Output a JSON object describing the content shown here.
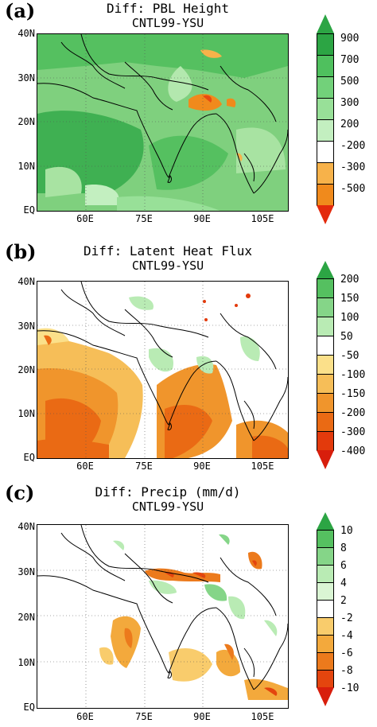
{
  "panels": [
    {
      "letter": "(a)",
      "title_line1": "Diff: PBL Height",
      "title_line2": "CNTL99-YSU",
      "ylabels": [
        "40N",
        "30N",
        "20N",
        "10N",
        "EQ"
      ],
      "xlabels": [
        "60E",
        "75E",
        "90E",
        "105E"
      ],
      "colorbar": {
        "labels": [
          "900",
          "700",
          "500",
          "300",
          "200",
          "-200",
          "-300",
          "-500"
        ],
        "colors": [
          "#2ca544",
          "#4fc05e",
          "#72d17a",
          "#98e098",
          "#c3efc0",
          "#ffffff",
          "#f7b24a",
          "#f08a1c",
          "#e84a10"
        ],
        "top_color": "#2ca544",
        "bottom_color": "#e32a0c"
      }
    },
    {
      "letter": "(b)",
      "title_line1": "Diff: Latent Heat Flux",
      "title_line2": "CNTL99-YSU",
      "ylabels": [
        "40N",
        "30N",
        "20N",
        "10N",
        "EQ"
      ],
      "xlabels": [
        "60E",
        "75E",
        "90E",
        "105E"
      ],
      "colorbar": {
        "labels": [
          "200",
          "150",
          "100",
          "50",
          "-50",
          "-100",
          "-150",
          "-200",
          "-300",
          "-400"
        ],
        "colors": [
          "#2ca544",
          "#55c060",
          "#85d588",
          "#b9ebb4",
          "#ffffff",
          "#fbe08a",
          "#f6be58",
          "#f0952c",
          "#ea6a14",
          "#e33a0c",
          "#d81e0c"
        ],
        "top_color": "#2ca544",
        "bottom_color": "#d81e0c"
      }
    },
    {
      "letter": "(c)",
      "title_line1": "Diff: Precip (mm/d)",
      "title_line2": "CNTL99-YSU",
      "ylabels": [
        "40N",
        "30N",
        "20N",
        "10N",
        "EQ"
      ],
      "xlabels": [
        "60E",
        "75E",
        "90E",
        "105E"
      ],
      "colorbar": {
        "labels": [
          "10",
          "8",
          "6",
          "4",
          "2",
          "-2",
          "-4",
          "-6",
          "-8",
          "-10"
        ],
        "colors": [
          "#2ca544",
          "#55c060",
          "#85d588",
          "#b9ebb4",
          "#daf5d4",
          "#ffffff",
          "#f9cc6c",
          "#f3a93c",
          "#ec7a1c",
          "#e4450e",
          "#d81e0c"
        ],
        "top_color": "#2ca544",
        "bottom_color": "#d81e0c"
      }
    }
  ]
}
